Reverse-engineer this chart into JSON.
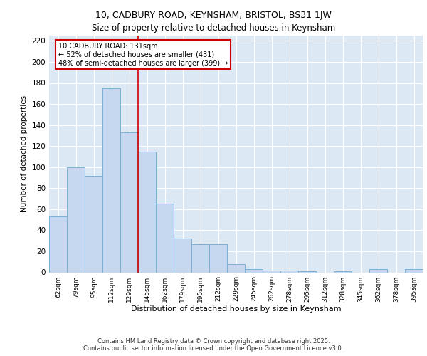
{
  "title_line1": "10, CADBURY ROAD, KEYNSHAM, BRISTOL, BS31 1JW",
  "title_line2": "Size of property relative to detached houses in Keynsham",
  "xlabel": "Distribution of detached houses by size in Keynsham",
  "ylabel": "Number of detached properties",
  "categories": [
    "62sqm",
    "79sqm",
    "95sqm",
    "112sqm",
    "129sqm",
    "145sqm",
    "162sqm",
    "179sqm",
    "195sqm",
    "212sqm",
    "229sqm",
    "245sqm",
    "262sqm",
    "278sqm",
    "295sqm",
    "312sqm",
    "328sqm",
    "345sqm",
    "362sqm",
    "378sqm",
    "395sqm"
  ],
  "values": [
    53,
    100,
    92,
    175,
    133,
    115,
    65,
    32,
    27,
    27,
    8,
    3,
    2,
    2,
    1,
    0,
    1,
    0,
    3,
    0,
    3
  ],
  "bar_color": "#c5d8ef",
  "bar_edge_color": "#7bafd4",
  "vline_color": "#cc0000",
  "vline_x": 4.5,
  "annotation_text": "10 CADBURY ROAD: 131sqm\n← 52% of detached houses are smaller (431)\n48% of semi-detached houses are larger (399) →",
  "annotation_edge_color": "#cc0000",
  "ylim": [
    0,
    225
  ],
  "yticks": [
    0,
    20,
    40,
    60,
    80,
    100,
    120,
    140,
    160,
    180,
    200,
    220
  ],
  "background_color": "#dde8f5",
  "grid_color": "#ffffff",
  "footer_text": "Contains HM Land Registry data © Crown copyright and database right 2025.\nContains public sector information licensed under the Open Government Licence v3.0."
}
